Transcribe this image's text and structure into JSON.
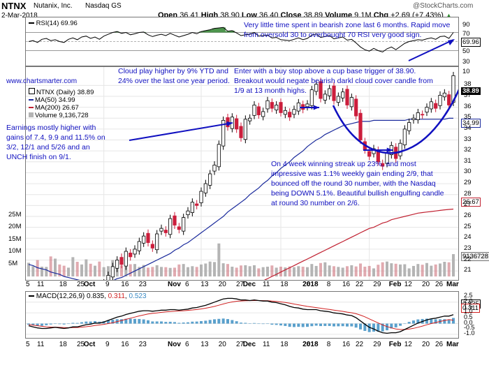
{
  "header": {
    "symbol": "NTNX",
    "company": "Nutanix, Inc.",
    "exchange": "Nasdaq GS",
    "date": "2-Mar-2018",
    "open_label": "Open",
    "open": "36.41",
    "high_label": "High",
    "high": "38.90",
    "low_label": "Low",
    "low": "36.40",
    "close_label": "Close",
    "close": "38.89",
    "volume_label": "Volume",
    "volume": "9.1M",
    "chg_label": "Chg",
    "chg": "+2.69 (+7.43%)",
    "chg_arrow": "▲",
    "watermark": "@StockCharts.com"
  },
  "rsi": {
    "label": "RSI(14) 69.96",
    "value_box": "69.96",
    "ticks": [
      "90",
      "70",
      "50",
      "30",
      "10"
    ]
  },
  "price": {
    "website": "www.chartsmarter.com",
    "legend_main": "NTNX (Daily) 38.89",
    "legend_ma50": "MA(50) 34.99",
    "legend_ma200": "MA(200) 26.67",
    "legend_volume": "Volume 9,136,728",
    "last_box": "38.89",
    "ma50_box": "34.99",
    "ma200_box": "26.67",
    "vol_box": "9136728",
    "price_ticks": [
      "38",
      "37",
      "36",
      "35",
      "34",
      "33",
      "32",
      "31",
      "30",
      "29",
      "28",
      "27",
      "26",
      "25",
      "24",
      "23",
      "22",
      "21"
    ],
    "vol_ticks": [
      "25M",
      "20M",
      "15M",
      "10M",
      "5M"
    ]
  },
  "macd": {
    "label_prefix": "MACD(12,26,9)",
    "v1": "0.835",
    "v2": "0.311",
    "v3": "0.523",
    "box1": "0.835",
    "box2": "0.311",
    "ticks": [
      "2.5",
      "2.0",
      "1.5",
      "1.0",
      "0.5",
      "0.0",
      "-0.5",
      "-1.0"
    ]
  },
  "x_axis": [
    "5",
    "11",
    "18",
    "25",
    "Oct",
    "9",
    "16",
    "23",
    "Nov",
    "6",
    "13",
    "20",
    "27",
    "Dec",
    "11",
    "18",
    "26",
    "2018",
    "8",
    "16",
    "22",
    "29",
    "Feb",
    "12",
    "20",
    "26",
    "Mar"
  ],
  "annotations": {
    "rsi_note": "Very little time spent in bearish zone last 6 months. Rapid move from oversold 30 to overbought 70 RSI very good sign.",
    "cloud_note": "Cloud play higher by 9% YTD and 24% over the last one year period.",
    "entry_note": "Enter with a buy stop above a cup base trigger of 38.90. Breakout would negate bearish darkl cloud cover candle from 1/9 at 13 month highs.",
    "earnings_note": "Earnings mostly higher with gains of 7.4, 9.9 and 11.5% on 3/2, 12/1 and 5/26 and an UNCH finish on 9/1.",
    "streak_note": "On 4 week winning streak up 23%, and most impressive was 1.1% weekly gain ending 2/9, that bounced off the round 30 number, with the Nasdaq being DOWN 5.1%. Beautiful bullish engulfing candle at round 30 number on 2/6."
  },
  "colors": {
    "up": "#000000",
    "down": "#cc1e3c",
    "ma50": "#1a2a9c",
    "ma200": "#c02030",
    "volume": "#b4b4b4",
    "volume_down": "#c86470",
    "annotation": "#1010c0",
    "macd_line": "#000000",
    "signal_line": "#d02020",
    "histogram": "#5aa0cc",
    "rsi_fill": "#3a8a3a"
  },
  "chart_data": {
    "type": "candlestick",
    "close": [
      16.2,
      16.8,
      16.1,
      16.9,
      17.5,
      17.0,
      17.8,
      17.3,
      16.9,
      17.6,
      18.4,
      17.8,
      18.7,
      19.0,
      18.5,
      19.3,
      18.8,
      19.9,
      20.6,
      21.4,
      22.0,
      21.6,
      22.8,
      22.3,
      23.0,
      23.7,
      24.2,
      23.6,
      23.1,
      24.4,
      24.9,
      24.5,
      25.8,
      25.2,
      24.8,
      25.9,
      26.5,
      27.3,
      27.0,
      28.3,
      29.0,
      29.9,
      30.7,
      32.6,
      34.8,
      34.2,
      35.1,
      34.0,
      33.2,
      34.9,
      35.0,
      36.2,
      35.3,
      35.6,
      36.6,
      35.9,
      36.2,
      35.5,
      35.7,
      35.1,
      35.8,
      36.4,
      35.8,
      36.3,
      37.6,
      38.1,
      36.8,
      37.2,
      37.7,
      36.6,
      37.0,
      37.4,
      36.2,
      36.9,
      35.2,
      33.0,
      32.1,
      31.5,
      32.2,
      31.0,
      30.6,
      31.8,
      32.5,
      31.3,
      32.7,
      34.0,
      34.6,
      35.0,
      35.5,
      35.3,
      36.0,
      36.5,
      35.9,
      37.1,
      37.3,
      36.2,
      38.89
    ],
    "ma50": [
      21.6,
      21.5,
      21.3,
      21.2,
      21.1,
      20.9,
      20.8,
      20.7,
      20.5,
      20.4,
      20.3,
      20.2,
      20.1,
      20.0,
      19.9,
      19.9,
      19.9,
      19.9,
      20.0,
      20.1,
      20.3,
      20.4,
      20.6,
      20.8,
      21.0,
      21.2,
      21.4,
      21.6,
      21.8,
      22.0,
      22.2,
      22.4,
      22.6,
      22.9,
      23.1,
      23.4,
      23.6,
      23.9,
      24.2,
      24.5,
      24.8,
      25.1,
      25.4,
      25.7,
      26.0,
      26.4,
      26.7,
      27.0,
      27.3,
      27.6,
      28.0,
      28.3,
      28.6,
      29.0,
      29.3,
      29.7,
      30.0,
      30.4,
      30.7,
      31.0,
      31.4,
      31.7,
      32.0,
      32.4,
      32.7,
      33.0,
      33.2,
      33.5,
      33.7,
      33.9,
      34.1,
      34.3,
      34.4,
      34.5,
      34.6,
      34.7,
      34.7,
      34.7,
      34.8,
      34.8,
      34.8,
      34.8,
      34.8,
      34.8,
      34.8,
      34.8,
      34.9,
      34.9,
      34.9,
      34.9,
      34.9,
      34.9,
      34.9,
      34.9,
      34.9,
      34.99,
      34.99
    ],
    "ma200": [
      17.6,
      17.4,
      17.3,
      17.2,
      17.1,
      17.0,
      16.9,
      16.9,
      16.8,
      16.8,
      16.8,
      16.8,
      16.8,
      16.8,
      16.8,
      16.8,
      16.8,
      16.8,
      16.8,
      16.8,
      16.8,
      16.8,
      16.8,
      16.8,
      16.9,
      16.9,
      16.9,
      17.0,
      17.0,
      17.1,
      17.1,
      17.2,
      17.3,
      17.4,
      17.4,
      17.5,
      17.6,
      17.7,
      17.8,
      17.9,
      18.0,
      18.2,
      18.3,
      18.5,
      18.6,
      18.8,
      18.9,
      19.1,
      19.3,
      19.4,
      19.6,
      19.8,
      19.9,
      20.1,
      20.3,
      20.5,
      20.7,
      20.9,
      21.1,
      21.3,
      21.5,
      21.7,
      21.9,
      22.1,
      22.3,
      22.5,
      22.7,
      22.9,
      23.1,
      23.3,
      23.5,
      23.7,
      23.9,
      24.1,
      24.3,
      24.5,
      24.7,
      24.9,
      25.0,
      25.2,
      25.4,
      25.5,
      25.7,
      25.8,
      25.9,
      26.0,
      26.1,
      26.2,
      26.3,
      26.35,
      26.4,
      26.45,
      26.5,
      26.55,
      26.6,
      26.64,
      26.67
    ],
    "volume_millions": [
      5.6,
      4.2,
      6.7,
      4.0,
      3.9,
      8.2,
      7.3,
      4.9,
      4.4,
      3.6,
      7.9,
      6.0,
      4.9,
      7.0,
      5.2,
      4.4,
      6.1,
      3.8,
      4.2,
      6.7,
      5.3,
      4.5,
      4.0,
      5.0,
      5.1,
      3.9,
      4.7,
      3.6,
      3.9,
      4.6,
      3.9,
      3.8,
      3.5,
      3.6,
      4.9,
      5.1,
      3.8,
      4.2,
      3.9,
      4.9,
      5.3,
      6.1,
      5.9,
      13.5,
      5.4,
      5.1,
      4.0,
      3.6,
      4.5,
      4.6,
      4.2,
      4.6,
      3.3,
      3.8,
      4.0,
      4.5,
      3.6,
      4.0,
      3.7,
      4.1,
      3.8,
      4.2,
      4.0,
      3.8,
      5.1,
      4.3,
      5.5,
      5.8,
      4.5,
      4.2,
      3.9,
      3.6,
      4.2,
      4.6,
      4.1,
      5.3,
      4.0,
      4.3,
      3.3,
      4.8,
      5.8,
      6.1,
      5.4,
      5.2,
      4.9,
      5.0,
      3.3,
      4.3,
      5.1,
      4.8,
      5.5,
      4.4,
      4.9,
      5.3,
      6.0,
      5.8,
      9.14
    ],
    "rsi": [
      50,
      52,
      48,
      55,
      57,
      52,
      54,
      50,
      48,
      55,
      58,
      54,
      60,
      62,
      57,
      60,
      55,
      62,
      66,
      70,
      72,
      68,
      70,
      65,
      67,
      70,
      71,
      65,
      61,
      64,
      66,
      63,
      68,
      64,
      60,
      63,
      66,
      70,
      67,
      72,
      74,
      76,
      79,
      80,
      81,
      73,
      74,
      69,
      63,
      65,
      66,
      70,
      62,
      63,
      64,
      58,
      59,
      54,
      53,
      52,
      55,
      58,
      54,
      57,
      64,
      67,
      59,
      61,
      63,
      56,
      58,
      60,
      53,
      55,
      47,
      38,
      32,
      29,
      35,
      30,
      27,
      34,
      38,
      32,
      39,
      46,
      50,
      52,
      54,
      53,
      56,
      58,
      55,
      61,
      62,
      57,
      69.96
    ],
    "macd": [
      -0.2,
      -0.3,
      -0.4,
      -0.45,
      -0.45,
      -0.4,
      -0.35,
      -0.4,
      -0.45,
      -0.4,
      -0.3,
      -0.3,
      -0.2,
      -0.1,
      -0.05,
      0.05,
      0.05,
      0.15,
      0.3,
      0.45,
      0.6,
      0.7,
      0.85,
      0.95,
      1.05,
      1.15,
      1.2,
      1.2,
      1.15,
      1.2,
      1.25,
      1.25,
      1.3,
      1.3,
      1.25,
      1.3,
      1.35,
      1.45,
      1.5,
      1.6,
      1.7,
      1.85,
      2.0,
      2.15,
      2.3,
      2.35,
      2.35,
      2.3,
      2.2,
      2.2,
      2.15,
      2.2,
      2.15,
      2.1,
      2.1,
      2.0,
      1.95,
      1.85,
      1.75,
      1.6,
      1.5,
      1.45,
      1.35,
      1.3,
      1.3,
      1.3,
      1.2,
      1.15,
      1.1,
      1.0,
      0.95,
      0.9,
      0.8,
      0.75,
      0.55,
      0.25,
      -0.05,
      -0.35,
      -0.5,
      -0.7,
      -0.85,
      -0.9,
      -0.85,
      -0.85,
      -0.75,
      -0.55,
      -0.35,
      -0.15,
      0.05,
      0.2,
      0.35,
      0.45,
      0.5,
      0.6,
      0.7,
      0.7,
      0.835
    ],
    "signal": [
      -0.1,
      -0.15,
      -0.2,
      -0.25,
      -0.3,
      -0.32,
      -0.33,
      -0.35,
      -0.37,
      -0.38,
      -0.37,
      -0.36,
      -0.33,
      -0.29,
      -0.24,
      -0.18,
      -0.13,
      -0.07,
      0.0,
      0.09,
      0.19,
      0.29,
      0.4,
      0.5,
      0.61,
      0.72,
      0.81,
      0.89,
      0.95,
      1.0,
      1.05,
      1.09,
      1.13,
      1.16,
      1.18,
      1.2,
      1.23,
      1.27,
      1.31,
      1.37,
      1.43,
      1.51,
      1.6,
      1.71,
      1.83,
      1.93,
      2.02,
      2.08,
      2.11,
      2.13,
      2.14,
      2.15,
      2.15,
      2.14,
      2.13,
      2.1,
      2.07,
      2.02,
      1.97,
      1.9,
      1.82,
      1.75,
      1.67,
      1.6,
      1.54,
      1.49,
      1.43,
      1.37,
      1.32,
      1.26,
      1.2,
      1.14,
      1.07,
      1.01,
      0.92,
      0.79,
      0.63,
      0.44,
      0.25,
      0.06,
      -0.12,
      -0.28,
      -0.4,
      -0.5,
      -0.55,
      -0.55,
      -0.51,
      -0.44,
      -0.34,
      -0.23,
      -0.11,
      0.0,
      0.1,
      0.2,
      0.29,
      0.37,
      0.311
    ],
    "price_ylim": [
      20.5,
      39.3
    ],
    "rsi_ylim": [
      0,
      100
    ],
    "macd_ylim": [
      -1.2,
      2.7
    ],
    "volume_ylim": [
      0,
      30
    ]
  }
}
